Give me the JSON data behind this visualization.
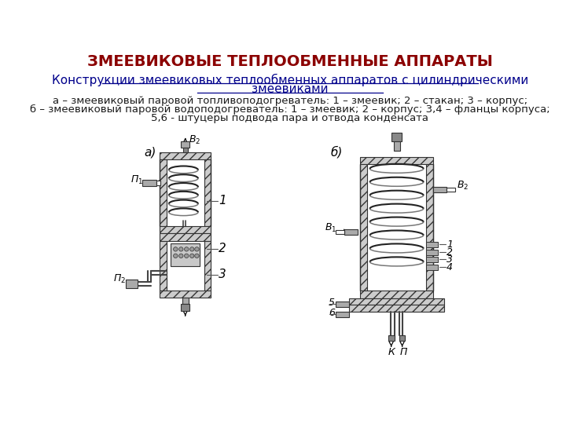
{
  "title": "ЗМЕЕВИКОВЫЕ ТЕПЛООБМЕННЫЕ АППАРАТЫ",
  "title_color": "#8B0000",
  "title_fontsize": 14,
  "subtitle_line1": "Конструкции змеевиковых теплообменных аппаратов с цилиндрическими",
  "subtitle_line2": "змеевиками",
  "subtitle_color": "#00008B",
  "subtitle_fontsize": 11,
  "desc_line1": "а – змеевиковый паровой топливоподогреватель: 1 – змеевик; 2 – стакан; 3 – корпус;",
  "desc_line2": "б – змеевиковый паровой водоподогреватель: 1 – змеевик; 2 – корпус; 3,4 – фланцы корпуса;",
  "desc_line3": "5,6 - штуцеры подвода пара и отвода конденсата",
  "desc_fontsize": 9.5,
  "diagram_bg": "#ffffff",
  "hatch_fc": "#cccccc",
  "line_color": "#333333",
  "dark_line": "#111111"
}
